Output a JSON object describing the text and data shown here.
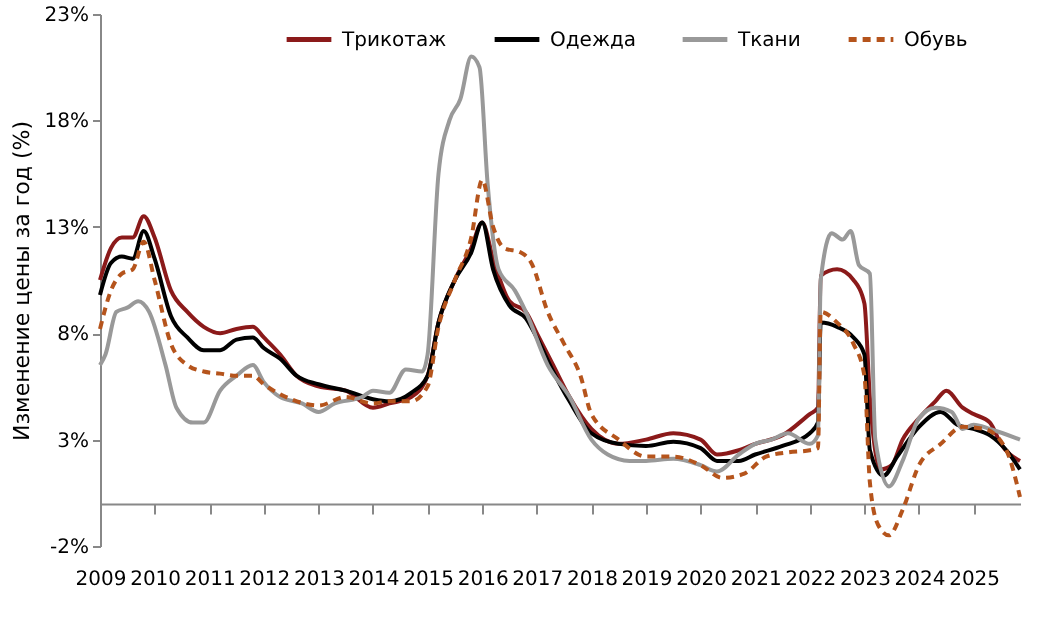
{
  "chart_data": {
    "type": "line",
    "ylabel": "Изменение  цены за год (%)",
    "xlim": [
      2009,
      2025.85
    ],
    "xticks": [
      2009,
      2010,
      2011,
      2012,
      2013,
      2014,
      2015,
      2016,
      2017,
      2018,
      2019,
      2020,
      2021,
      2022,
      2023,
      2024,
      2025
    ],
    "ylim": [
      -2,
      23
    ],
    "yticks": [
      {
        "value": -2,
        "label": "-2%"
      },
      {
        "value": 3,
        "label": "3%"
      },
      {
        "value": 8,
        "label": "8%"
      },
      {
        "value": 13,
        "label": "13%"
      },
      {
        "value": 18,
        "label": "18%"
      },
      {
        "value": 23,
        "label": "23%"
      }
    ],
    "legend": "top",
    "grid": false,
    "series": [
      {
        "name": "Трикотаж",
        "color": "#8b1a1a",
        "line_style": "solid",
        "x": [
          2009,
          2009.2,
          2009.4,
          2009.6,
          2009.8,
          2010,
          2010.3,
          2010.6,
          2010.9,
          2011.2,
          2011.5,
          2011.8,
          2012,
          2012.3,
          2012.6,
          2013,
          2013.5,
          2014,
          2014.3,
          2014.7,
          2015,
          2015.2,
          2015.5,
          2015.8,
          2016,
          2016.2,
          2016.5,
          2016.8,
          2017,
          2017.3,
          2017.6,
          2018,
          2018.5,
          2019,
          2019.5,
          2020,
          2020.3,
          2020.7,
          2021,
          2021.5,
          2022,
          2022.15,
          2022.2,
          2022.5,
          2022.8,
          2023,
          2023.1,
          2023.3,
          2023.5,
          2023.7,
          2024,
          2024.3,
          2024.5,
          2024.8,
          2025,
          2025.3,
          2025.5,
          2025.85
        ],
        "values": [
          10.5,
          12,
          12.5,
          12.5,
          13.5,
          12.5,
          10,
          9,
          8.3,
          8,
          8.2,
          8.3,
          7.8,
          7,
          6,
          5.5,
          5.3,
          4.5,
          4.7,
          5,
          6,
          8.5,
          10.5,
          12,
          13.2,
          11.5,
          9.5,
          9,
          8,
          6.5,
          5,
          3.5,
          2.8,
          3,
          3.3,
          3,
          2.3,
          2.5,
          2.8,
          3.2,
          4.2,
          4.5,
          10.7,
          11,
          10.5,
          9.4,
          5,
          1.6,
          1.8,
          3,
          4,
          4.8,
          5.3,
          4.5,
          4.2,
          3.8,
          2.8,
          2
        ]
      },
      {
        "name": "Одежда",
        "color": "#000000",
        "line_style": "solid",
        "x": [
          2009,
          2009.2,
          2009.4,
          2009.6,
          2009.8,
          2010,
          2010.3,
          2010.6,
          2010.9,
          2011.2,
          2011.5,
          2011.8,
          2012,
          2012.3,
          2012.6,
          2013,
          2013.5,
          2014,
          2014.3,
          2014.7,
          2015,
          2015.2,
          2015.5,
          2015.8,
          2016,
          2016.2,
          2016.5,
          2016.8,
          2017,
          2017.3,
          2017.6,
          2018,
          2018.5,
          2019,
          2019.5,
          2020,
          2020.3,
          2020.7,
          2021,
          2021.5,
          2022,
          2022.15,
          2022.2,
          2022.5,
          2022.8,
          2023,
          2023.1,
          2023.35,
          2023.6,
          2024,
          2024.4,
          2024.7,
          2025,
          2025.3,
          2025.6,
          2025.85
        ],
        "values": [
          9.8,
          11.3,
          11.6,
          11.5,
          12.8,
          11.5,
          8.8,
          7.8,
          7.2,
          7.2,
          7.7,
          7.8,
          7.3,
          6.8,
          6,
          5.6,
          5.3,
          4.9,
          4.8,
          5.2,
          6,
          8.5,
          10.5,
          11.8,
          13.2,
          11,
          9.3,
          8.7,
          7.8,
          6.2,
          4.8,
          3.3,
          2.8,
          2.7,
          2.9,
          2.6,
          2,
          2,
          2.3,
          2.7,
          3.3,
          3.8,
          8.5,
          8.3,
          7.8,
          7,
          2.5,
          1.3,
          2.2,
          3.6,
          4.3,
          3.7,
          3.5,
          3.2,
          2.5,
          1.6
        ]
      },
      {
        "name": "Ткани",
        "color": "#999999",
        "line_style": "solid",
        "x": [
          2009,
          2009.1,
          2009.3,
          2009.5,
          2009.7,
          2009.9,
          2010.2,
          2010.4,
          2010.7,
          2010.9,
          2011.2,
          2011.5,
          2011.8,
          2012,
          2012.3,
          2012.7,
          2013,
          2013.3,
          2013.8,
          2014,
          2014.3,
          2014.6,
          2014.9,
          2015,
          2015.2,
          2015.4,
          2015.6,
          2015.8,
          2015.95,
          2016.1,
          2016.3,
          2016.6,
          2016.8,
          2017.2,
          2017.6,
          2018,
          2018.3,
          2018.7,
          2019,
          2019.5,
          2020,
          2020.3,
          2020.7,
          2021,
          2021.3,
          2021.6,
          2022,
          2022.15,
          2022.2,
          2022.4,
          2022.6,
          2022.75,
          2022.9,
          2023.1,
          2023.2,
          2023.45,
          2023.7,
          2024,
          2024.3,
          2024.6,
          2024.8,
          2025,
          2025.3,
          2025.85
        ],
        "values": [
          6.5,
          7,
          9,
          9.2,
          9.5,
          9,
          6.5,
          4.5,
          3.8,
          3.8,
          5.3,
          6,
          6.5,
          5.7,
          5,
          4.7,
          4.3,
          4.7,
          5,
          5.3,
          5.2,
          6.3,
          6.2,
          7,
          15.5,
          18,
          19,
          21,
          20.5,
          15,
          11,
          10,
          9,
          6.5,
          5,
          3,
          2.3,
          2,
          2,
          2.1,
          1.8,
          1.5,
          2.3,
          2.8,
          3,
          3.3,
          2.8,
          3.2,
          10.5,
          12.7,
          12.4,
          12.8,
          11.2,
          10.8,
          3,
          0.8,
          2,
          4,
          4.5,
          4.3,
          3.5,
          3.7,
          3.5,
          3
        ]
      },
      {
        "name": "Обувь",
        "color": "#b5541c",
        "line_style": "dashed",
        "x": [
          2009,
          2009.2,
          2009.4,
          2009.6,
          2009.8,
          2010,
          2010.3,
          2010.6,
          2010.9,
          2011.2,
          2011.5,
          2011.8,
          2012,
          2012.5,
          2013,
          2013.5,
          2014,
          2014.3,
          2014.7,
          2015,
          2015.2,
          2015.5,
          2015.8,
          2016,
          2016.2,
          2016.4,
          2016.7,
          2016.9,
          2017.2,
          2017.5,
          2017.8,
          2018,
          2018.5,
          2019,
          2019.5,
          2020,
          2020.4,
          2020.8,
          2021.2,
          2021.6,
          2022,
          2022.15,
          2022.2,
          2022.5,
          2022.8,
          2023,
          2023.1,
          2023.25,
          2023.45,
          2023.7,
          2024,
          2024.4,
          2024.8,
          2025.2,
          2025.6,
          2025.85
        ],
        "values": [
          8.2,
          10,
          10.8,
          11,
          12.3,
          10.5,
          7.5,
          6.5,
          6.2,
          6.1,
          6,
          6,
          5.6,
          4.9,
          4.6,
          5,
          4.7,
          4.8,
          4.8,
          5.5,
          8.3,
          10.5,
          12.5,
          15.2,
          13,
          12,
          11.8,
          11.3,
          9,
          7.5,
          6,
          4.2,
          3,
          2.2,
          2.2,
          1.8,
          1.2,
          1.4,
          2.2,
          2.4,
          2.5,
          2.6,
          9,
          8.5,
          7.5,
          6,
          1,
          -1,
          -1.5,
          -0.3,
          1.8,
          2.8,
          3.6,
          3.5,
          2.5,
          0.3
        ]
      }
    ]
  }
}
